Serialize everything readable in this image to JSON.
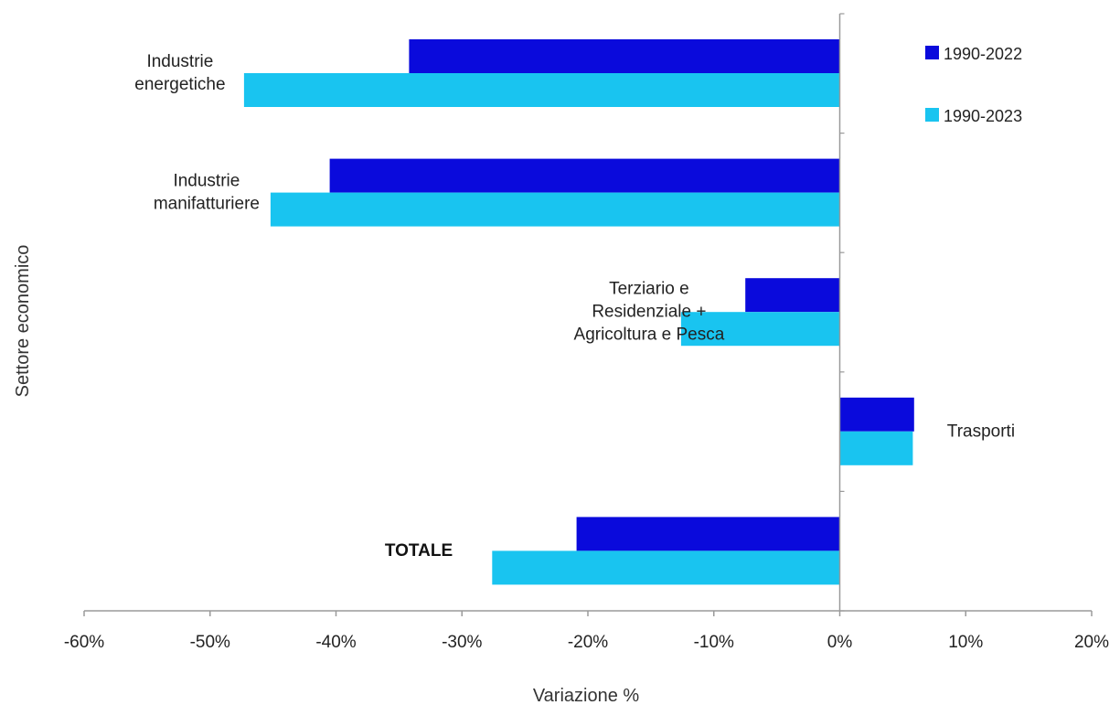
{
  "chart_data": {
    "type": "bar",
    "orientation": "horizontal",
    "title": "",
    "xlabel": "Variazione %",
    "ylabel": "Settore economico",
    "xlim": [
      -60,
      20
    ],
    "xticks": [
      -60,
      -50,
      -40,
      -30,
      -20,
      -10,
      0,
      10,
      20
    ],
    "xtick_labels": [
      "-60%",
      "-50%",
      "-40%",
      "-30%",
      "-20%",
      "-10%",
      "0%",
      "10%",
      "20%"
    ],
    "grid": false,
    "legend_position": "top-right",
    "categories": [
      "Industrie energetiche",
      "Industrie manifatturiere",
      "Terziario e Residenziale + Agricoltura e Pesca",
      "Trasporti",
      "TOTALE"
    ],
    "category_label_lines": [
      [
        "Industrie",
        "energetiche"
      ],
      [
        "Industrie",
        "manifatturiere"
      ],
      [
        "Terziario e",
        "Residenziale +",
        "Agricoltura e Pesca"
      ],
      [
        "Trasporti"
      ],
      [
        "TOTALE"
      ]
    ],
    "series": [
      {
        "name": "1990-2022",
        "color": "#0A0ADC",
        "values": [
          -34.2,
          -40.5,
          -7.5,
          5.9,
          -20.9
        ]
      },
      {
        "name": "1990-2023",
        "color": "#19C4F0",
        "values": [
          -47.3,
          -45.2,
          -12.6,
          5.8,
          -27.6
        ]
      }
    ]
  }
}
